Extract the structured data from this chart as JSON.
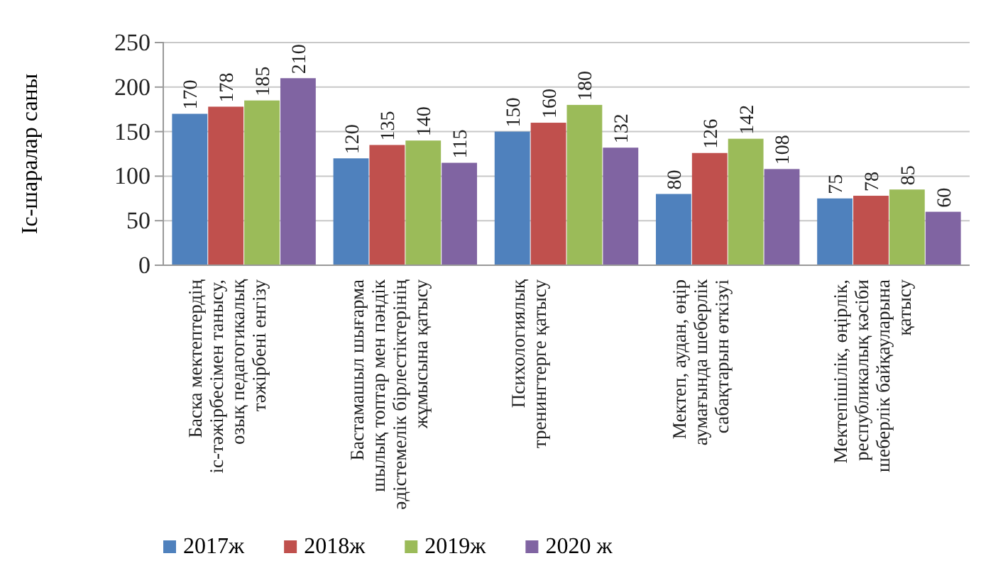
{
  "chart_data": {
    "type": "bar",
    "ylabel": "Іс-шаралар саны",
    "categories": [
      "Баска мектептердің іс-тәжірбесімен танысу, озық педагогикалық тәжірбені енгізу",
      "Бастамашыл шығарма шылық топтар мен пәндік әдістемелік бірлестіктерінің жұмысына қатысу",
      "Психологиялық тренингтерге қатысу",
      "Мектеп, аудан, өңір аумағында шеберлік сабақтарын өткізуі",
      "Мектепішілік, өңірлік, республикалық кәсіби шеберлік байқауларына қатысу"
    ],
    "series": [
      {
        "name": "2017ж",
        "color": "#4f81bd",
        "values": [
          170,
          120,
          150,
          80,
          75
        ]
      },
      {
        "name": "2018ж",
        "color": "#c0504d",
        "values": [
          178,
          135,
          160,
          126,
          78
        ]
      },
      {
        "name": "2019ж",
        "color": "#9bbb59",
        "values": [
          185,
          140,
          180,
          142,
          85
        ]
      },
      {
        "name": "2020 ж",
        "color": "#8064a2",
        "values": [
          210,
          115,
          132,
          108,
          60
        ]
      }
    ],
    "ylim": [
      0,
      250
    ],
    "yticks": [
      0,
      50,
      100,
      150,
      200,
      250
    ],
    "grid": "y",
    "legend": "bottom",
    "data_labels": true
  }
}
